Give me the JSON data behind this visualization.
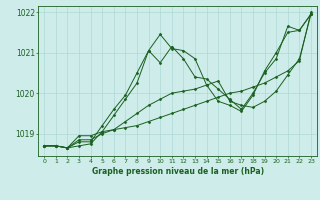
{
  "xlabel": "Graphe pression niveau de la mer (hPa)",
  "background_color": "#ceecea",
  "grid_color": "#aed8d4",
  "line_color": "#1a6020",
  "xlim": [
    -0.5,
    23.5
  ],
  "ylim": [
    1018.45,
    1022.15
  ],
  "yticks": [
    1019,
    1020,
    1021,
    1022
  ],
  "xticks": [
    0,
    1,
    2,
    3,
    4,
    5,
    6,
    7,
    8,
    9,
    10,
    11,
    12,
    13,
    14,
    15,
    16,
    17,
    18,
    19,
    20,
    21,
    22,
    23
  ],
  "series": [
    [
      1018.7,
      1018.7,
      1018.65,
      1018.7,
      1018.75,
      1019.05,
      1019.45,
      1019.85,
      1020.25,
      1021.05,
      1020.75,
      1021.15,
      1020.85,
      1020.4,
      1020.35,
      1020.1,
      1019.85,
      1019.6,
      1020.0,
      1020.5,
      1020.85,
      1021.65,
      1021.55,
      1021.95
    ],
    [
      1018.7,
      1018.7,
      1018.65,
      1018.85,
      1018.85,
      1019.0,
      1019.1,
      1019.3,
      1019.5,
      1019.7,
      1019.85,
      1020.0,
      1020.05,
      1020.1,
      1020.2,
      1020.3,
      1019.8,
      1019.7,
      1019.65,
      1019.8,
      1020.05,
      1020.45,
      1020.85,
      1021.95
    ],
    [
      1018.7,
      1018.7,
      1018.65,
      1018.95,
      1018.95,
      1019.05,
      1019.1,
      1019.15,
      1019.2,
      1019.3,
      1019.4,
      1019.5,
      1019.6,
      1019.7,
      1019.8,
      1019.9,
      1020.0,
      1020.05,
      1020.15,
      1020.25,
      1020.4,
      1020.55,
      1020.8,
      1022.0
    ],
    [
      1018.7,
      1018.7,
      1018.65,
      1018.8,
      1018.8,
      1019.2,
      1019.6,
      1019.95,
      1020.5,
      1021.05,
      1021.45,
      1021.1,
      1021.05,
      1020.85,
      1020.2,
      1019.8,
      1019.7,
      1019.55,
      1019.95,
      1020.55,
      1021.0,
      1021.5,
      1021.55,
      1021.95
    ]
  ]
}
